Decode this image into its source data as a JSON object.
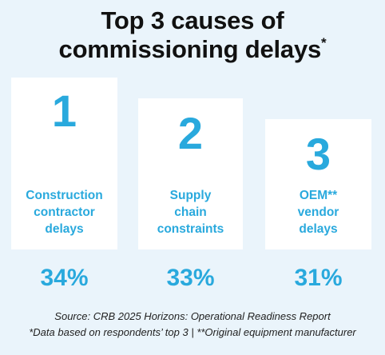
{
  "title": {
    "line1": "Top 3 causes of",
    "line2": "commissioning delays",
    "marker": "*"
  },
  "causes": [
    {
      "rank": "1",
      "label_lines": [
        "Construction",
        "contractor",
        "delays"
      ],
      "percent": "34%"
    },
    {
      "rank": "2",
      "label_lines": [
        "Supply",
        "chain",
        "constraints"
      ],
      "percent": "33%"
    },
    {
      "rank": "3",
      "label_lines": [
        "OEM**",
        "vendor",
        "delays"
      ],
      "percent": "31%"
    }
  ],
  "footnotes": {
    "source": "Source: CRB 2025 Horizons: Operational Readiness Report",
    "notes": "*Data based on respondents’ top 3 | **Original equipment manufacturer"
  },
  "colors": {
    "background": "#eaf4fb",
    "accent": "#29a9dd",
    "card": "#ffffff",
    "title_text": "#111111"
  }
}
